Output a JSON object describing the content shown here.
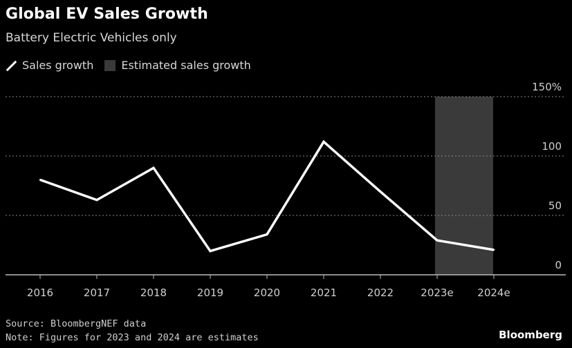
{
  "header": {
    "title": "Global EV Sales Growth",
    "subtitle": "Battery Electric Vehicles only"
  },
  "legend": {
    "line_label": "Sales growth",
    "shade_label": "Estimated sales growth"
  },
  "chart_data": {
    "type": "line",
    "title": "Global EV Sales Growth",
    "subtitle": "Battery Electric Vehicles only",
    "categories": [
      "2016",
      "2017",
      "2018",
      "2019",
      "2020",
      "2021",
      "2022",
      "2023e",
      "2024e"
    ],
    "series": [
      {
        "name": "Sales growth",
        "values": [
          80,
          63,
          90,
          20,
          34,
          112,
          70,
          29,
          21
        ]
      }
    ],
    "shaded_region": {
      "name": "Estimated sales growth",
      "from": "2023e",
      "to": "2024e"
    },
    "y_ticks": [
      "0",
      "50",
      "100",
      "150%"
    ],
    "y_tick_values": [
      0,
      50,
      100,
      150
    ],
    "ylim": [
      0,
      150
    ],
    "y_axis_side": "right",
    "grid": true,
    "legend_position": "top-left",
    "colors": {
      "background": "#000000",
      "line": "#ffffff",
      "shade": "#3a3a3a",
      "grid": "#8a8a8a",
      "text": "#d0d0d0"
    }
  },
  "footer": {
    "source": "Source: BloombergNEF data",
    "note": "Note: Figures for 2023 and 2024 are estimates",
    "brand": "Bloomberg"
  }
}
